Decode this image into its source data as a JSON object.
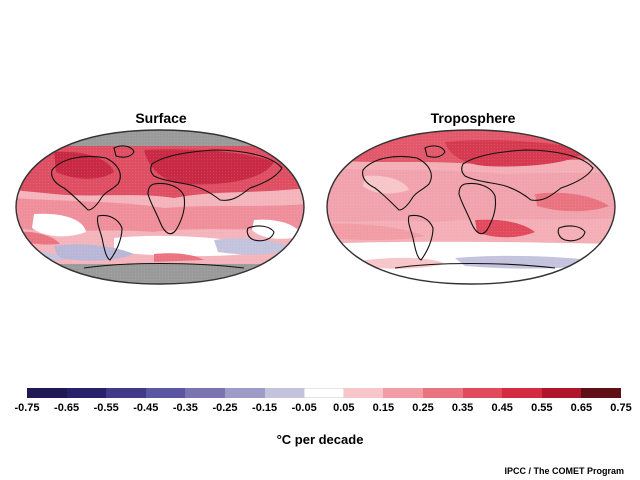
{
  "maps": {
    "left_title": "Surface",
    "right_title": "Troposphere"
  },
  "colorbar": {
    "colors": [
      "#1f1a55",
      "#27226a",
      "#403a87",
      "#5a57a0",
      "#7a75b2",
      "#9d9bc8",
      "#c4c3de",
      "#ffffff",
      "#f7c6c9",
      "#f29da5",
      "#ea7380",
      "#e04a5c",
      "#d42b40",
      "#b0152b",
      "#5e1016"
    ],
    "tick_labels": [
      "-0.75",
      "-0.65",
      "-0.55",
      "-0.45",
      "-0.35",
      "-0.25",
      "-0.15",
      "-0.05",
      "0.05",
      "0.15",
      "0.25",
      "0.35",
      "0.45",
      "0.55",
      "0.65",
      "0.75"
    ],
    "unit": "°C per decade"
  },
  "credit": "IPCC / The COMET Program",
  "palette": {
    "land_outline": "#111111",
    "missing_data": "#9a9a9a"
  }
}
